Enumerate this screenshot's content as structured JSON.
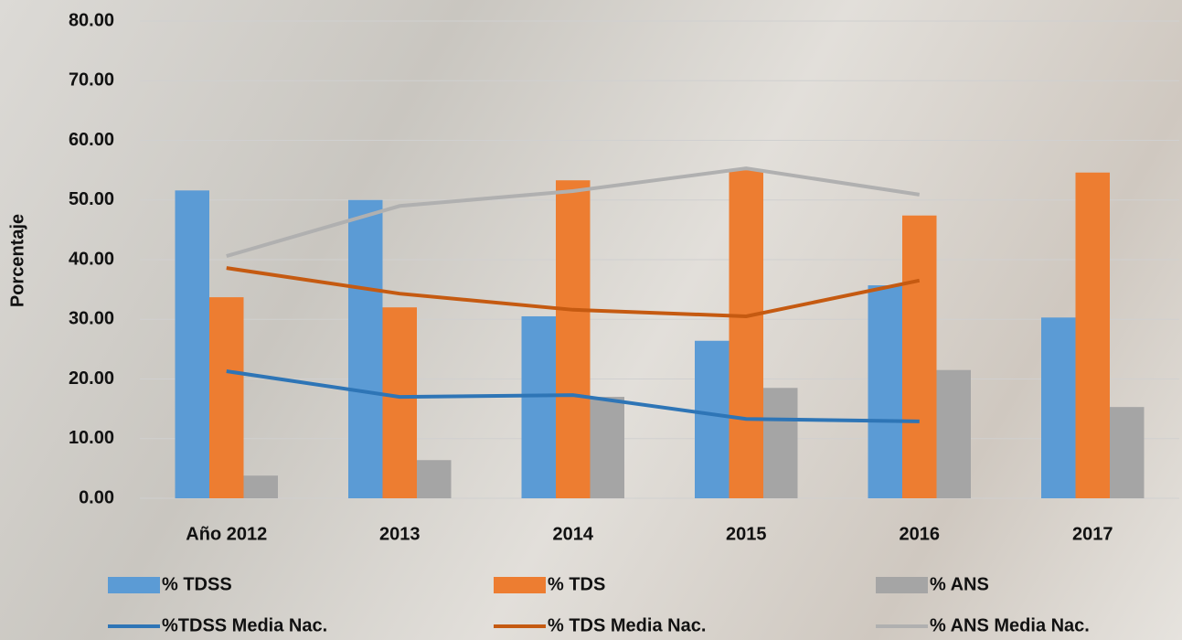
{
  "chart_data": {
    "type": "bar_line",
    "y_label": "Porcentaje",
    "categories": [
      "Año 2012",
      "2013",
      "2014",
      "2015",
      "2016",
      "2017"
    ],
    "series": [
      {
        "name": "% TDSS",
        "type": "bar",
        "color": "#5b9bd5",
        "values": [
          51.6,
          50.0,
          30.5,
          26.4,
          35.7,
          30.3
        ]
      },
      {
        "name": "% TDS",
        "type": "bar",
        "color": "#ed7d31",
        "values": [
          33.7,
          32.0,
          53.3,
          55.0,
          47.4,
          54.6
        ]
      },
      {
        "name": "% ANS",
        "type": "bar",
        "color": "#a5a5a5",
        "values": [
          3.8,
          6.4,
          17.0,
          18.5,
          21.5,
          15.3
        ]
      },
      {
        "name": "%TDSS Media Nac.",
        "type": "line",
        "color": "#2e75b6",
        "values": [
          21.3,
          17.0,
          17.3,
          13.3,
          12.9,
          null
        ]
      },
      {
        "name": "% TDS Media Nac.",
        "type": "line",
        "color": "#c55a11",
        "values": [
          38.6,
          34.3,
          31.6,
          30.5,
          36.5,
          null
        ]
      },
      {
        "name": "% ANS Media Nac.",
        "type": "line",
        "color": "#b0b0b0",
        "values": [
          40.6,
          49.0,
          51.5,
          55.3,
          50.9,
          null
        ]
      }
    ],
    "ylim": [
      0,
      80
    ],
    "yticks": [
      {
        "value": 0,
        "label": "0.00"
      },
      {
        "value": 10,
        "label": "10.00"
      },
      {
        "value": 20,
        "label": "20.00"
      },
      {
        "value": 30,
        "label": "30.00"
      },
      {
        "value": 40,
        "label": "40.00"
      },
      {
        "value": 50,
        "label": "50.00"
      },
      {
        "value": 60,
        "label": "60.00"
      },
      {
        "value": 70,
        "label": "70.00"
      },
      {
        "value": 80,
        "label": "80.00"
      }
    ],
    "grid": true
  }
}
